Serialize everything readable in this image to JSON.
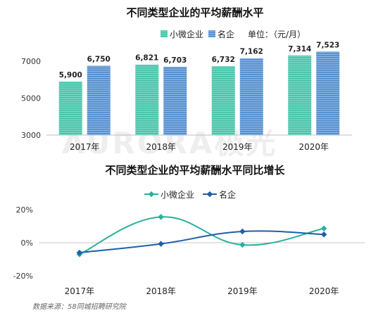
{
  "chart_data": [
    {
      "type": "bar",
      "title": "不同类型企业的平均薪酬水平",
      "unit_label": "单位：（元/月）",
      "categories": [
        "2017年",
        "2018年",
        "2019年",
        "2020年"
      ],
      "ylim": [
        3000,
        7800
      ],
      "yticks": [
        "7000",
        "5000",
        "3000"
      ],
      "ytick_values": [
        7000,
        5000,
        3000
      ],
      "legend_position": "top-center",
      "series": [
        {
          "name": "小微企业",
          "values": [
            5900,
            6821,
            6732,
            7314
          ],
          "labels": [
            "5,900",
            "6,821",
            "6,732",
            "7,314"
          ],
          "color": "#3dbfa5"
        },
        {
          "name": "名企",
          "values": [
            6750,
            6703,
            7162,
            7523
          ],
          "labels": [
            "6,750",
            "6,703",
            "7,162",
            "7,523"
          ],
          "color": "#4a86c8"
        }
      ]
    },
    {
      "type": "line",
      "title": "不同类型企业的平均薪酬水平同比增长",
      "categories": [
        "2017年",
        "2018年",
        "2019年",
        "2020年"
      ],
      "ylim": [
        -0.2,
        0.2
      ],
      "yticks": [
        "20%",
        "0%",
        "-20%"
      ],
      "ytick_values": [
        0.2,
        0,
        -0.2
      ],
      "legend_position": "top-center",
      "series": [
        {
          "name": "小微企业",
          "values": [
            -0.07,
            0.156,
            -0.013,
            0.086
          ],
          "color": "#2bb19b"
        },
        {
          "name": "名企",
          "values": [
            -0.06,
            -0.007,
            0.068,
            0.05
          ],
          "color": "#1f5fa8"
        }
      ]
    }
  ],
  "watermark": "AURORA极光",
  "source": "数据来源：58同城招聘研究院"
}
